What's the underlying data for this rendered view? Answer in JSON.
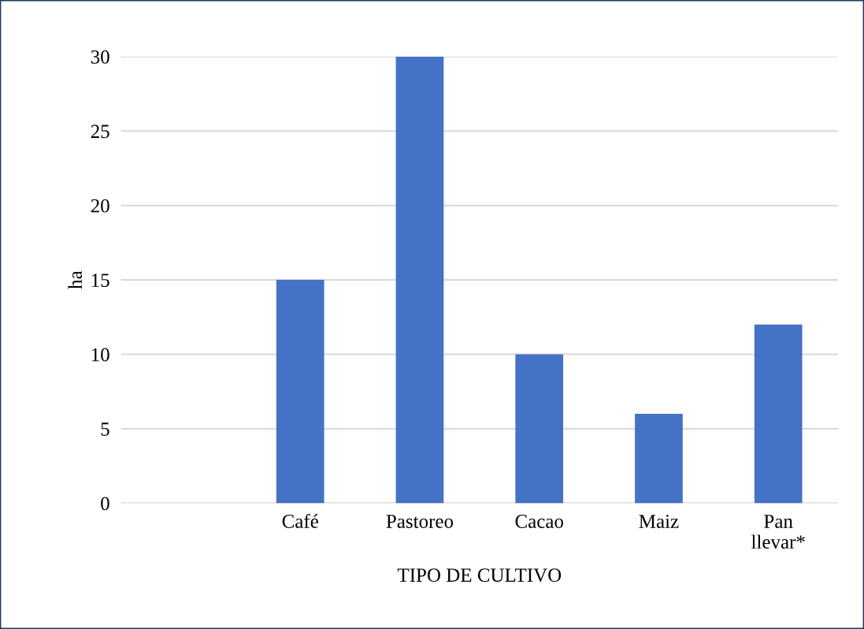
{
  "chart_data": {
    "type": "bar",
    "xlabel": "TIPO DE CULTIVO",
    "ylabel": "ha",
    "categories": [
      null,
      "Café",
      "Pastoreo",
      "Cacao",
      "Maiz",
      "Pan\nllevar*"
    ],
    "values": [
      null,
      15,
      30,
      10,
      6,
      12
    ],
    "color": "#4472c4",
    "ylim": [
      0,
      30
    ],
    "yticks": [
      0,
      5,
      10,
      15,
      20,
      25,
      30
    ],
    "grid": "y"
  }
}
